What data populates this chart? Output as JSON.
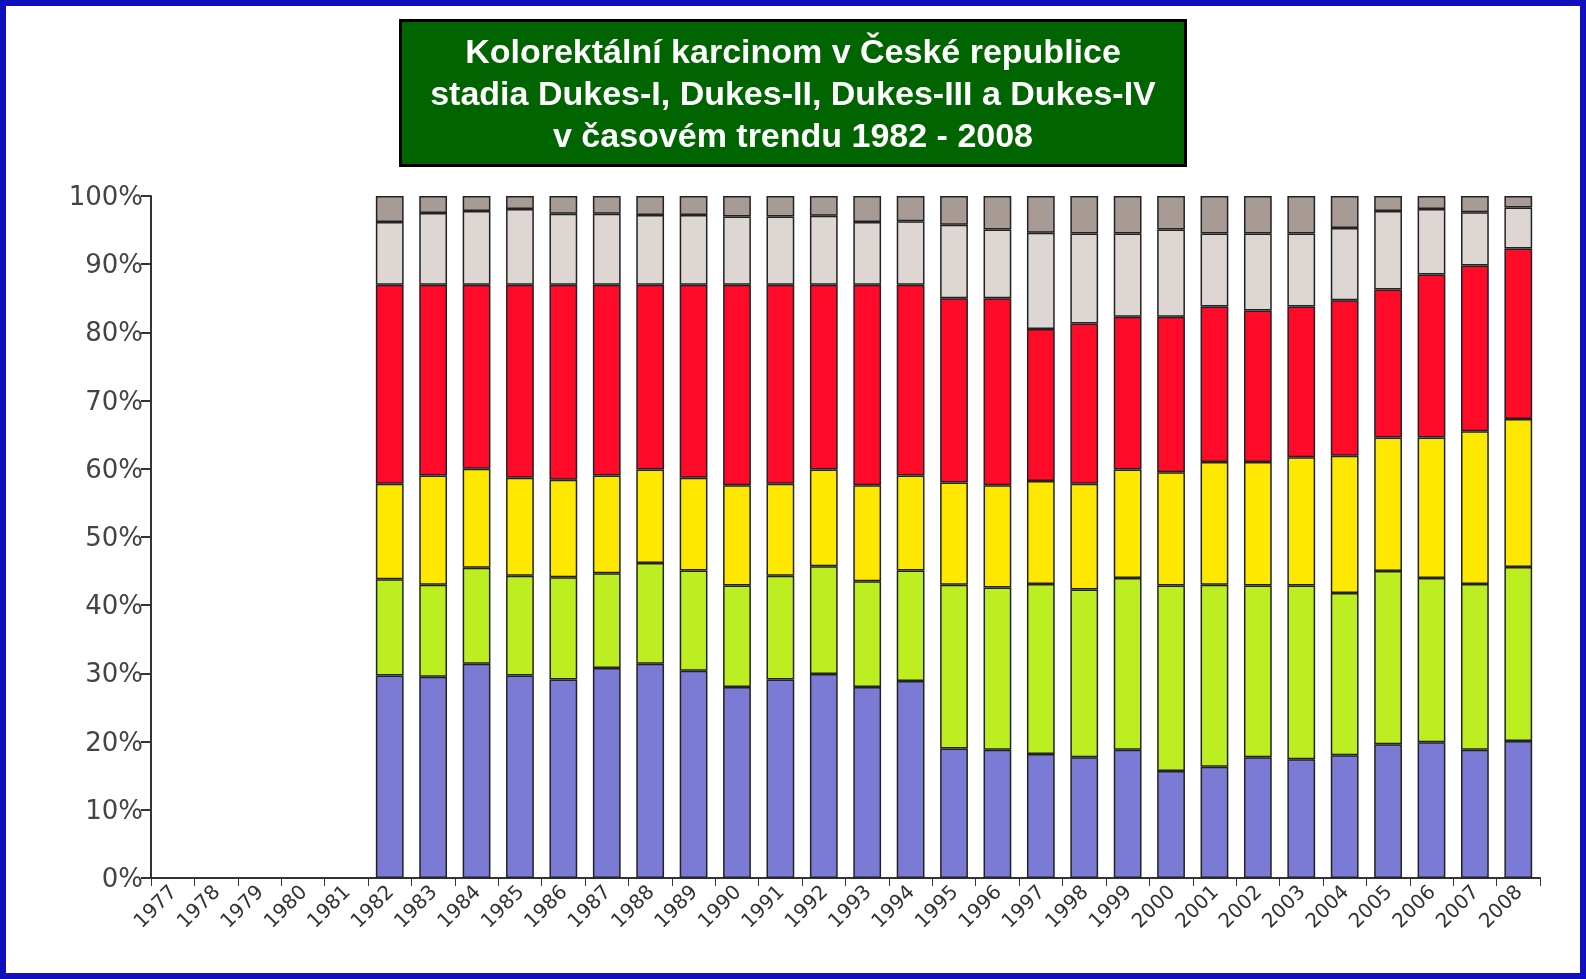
{
  "chart_data": {
    "type": "bar",
    "stacked": true,
    "title": "Kolorektální karcinom v České republice\nstadia Dukes-I, Dukes-II, Dukes-III a Dukes-IV\nv časovém trendu 1982 - 2008",
    "categories": [
      "1977",
      "1978",
      "1979",
      "1980",
      "1981",
      "1982",
      "1983",
      "1984",
      "1985",
      "1986",
      "1987",
      "1988",
      "1989",
      "1990",
      "1991",
      "1992",
      "1993",
      "1994",
      "1995",
      "1996",
      "1997",
      "1998",
      "1999",
      "2000",
      "2001",
      "2002",
      "2003",
      "2004",
      "2005",
      "2006",
      "2007",
      "2008"
    ],
    "series": [
      {
        "color": "#7b7bd6",
        "values": [
          null,
          null,
          null,
          null,
          null,
          29.7,
          29.5,
          31.4,
          29.7,
          29.1,
          30.8,
          31.4,
          30.4,
          28.0,
          29.1,
          29.9,
          28.0,
          28.9,
          19.0,
          18.8,
          18.2,
          17.7,
          18.8,
          15.7,
          16.3,
          17.7,
          17.4,
          18.0,
          19.6,
          19.9,
          18.8,
          20.1
        ]
      },
      {
        "color": "#bdee21",
        "values": [
          null,
          null,
          null,
          null,
          null,
          14.1,
          13.5,
          14.1,
          14.6,
          15.0,
          13.9,
          14.8,
          14.7,
          14.9,
          15.2,
          15.8,
          15.5,
          16.2,
          24.0,
          23.8,
          24.9,
          24.6,
          25.2,
          27.2,
          26.7,
          25.2,
          25.5,
          23.8,
          25.4,
          24.1,
          24.3,
          25.5
        ]
      },
      {
        "color": "#ffe800",
        "values": [
          null,
          null,
          null,
          null,
          null,
          14.0,
          16.0,
          14.5,
          14.4,
          14.3,
          14.3,
          13.7,
          13.6,
          14.7,
          13.5,
          14.2,
          14.1,
          13.9,
          15.0,
          15.0,
          15.1,
          15.5,
          15.9,
          16.6,
          18.0,
          18.1,
          18.8,
          20.1,
          19.6,
          20.6,
          22.4,
          21.7
        ]
      },
      {
        "color": "#ff0a29",
        "values": [
          null,
          null,
          null,
          null,
          null,
          29.2,
          28.0,
          27.0,
          28.3,
          28.6,
          28.0,
          27.1,
          28.3,
          29.4,
          29.2,
          27.1,
          29.4,
          28.0,
          27.0,
          27.4,
          22.3,
          23.5,
          22.4,
          22.8,
          22.8,
          22.2,
          22.1,
          22.8,
          21.7,
          23.9,
          24.3,
          25.0
        ]
      },
      {
        "color": "#ddd6d2",
        "values": [
          null,
          null,
          null,
          null,
          null,
          9.2,
          10.5,
          10.8,
          11.1,
          10.4,
          10.4,
          10.2,
          10.2,
          10.0,
          10.0,
          10.1,
          9.2,
          9.3,
          10.8,
          10.1,
          14.1,
          13.2,
          12.2,
          12.8,
          10.7,
          11.3,
          10.7,
          10.6,
          11.5,
          9.6,
          7.8,
          6.0
        ]
      },
      {
        "color": "#a89a94",
        "values": [
          null,
          null,
          null,
          null,
          null,
          3.8,
          2.5,
          2.2,
          1.9,
          2.6,
          2.6,
          2.8,
          2.8,
          3.0,
          3.0,
          2.9,
          3.8,
          3.7,
          4.2,
          4.9,
          5.4,
          5.5,
          5.5,
          4.9,
          5.5,
          5.5,
          5.5,
          4.7,
          2.2,
          1.9,
          2.4,
          1.7
        ]
      }
    ],
    "ylim": [
      0,
      100
    ],
    "yticks": [
      {
        "value": 0,
        "label": "0%"
      },
      {
        "value": 10,
        "label": "10%"
      },
      {
        "value": 20,
        "label": "20%"
      },
      {
        "value": 30,
        "label": "30%"
      },
      {
        "value": 40,
        "label": "40%"
      },
      {
        "value": 50,
        "label": "50%"
      },
      {
        "value": 60,
        "label": "60%"
      },
      {
        "value": 70,
        "label": "70%"
      },
      {
        "value": 80,
        "label": "80%"
      },
      {
        "value": 90,
        "label": "90%"
      },
      {
        "value": 100,
        "label": "100%"
      }
    ]
  }
}
